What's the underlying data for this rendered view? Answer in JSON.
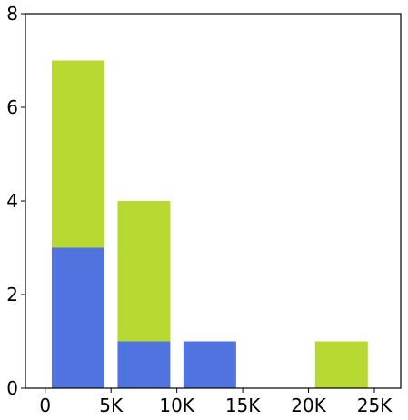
{
  "chart_data": {
    "type": "bar",
    "stacked": true,
    "title": "",
    "xlabel": "",
    "ylabel": "",
    "xlim": [
      -1500,
      27000
    ],
    "ylim": [
      0,
      8
    ],
    "grid": false,
    "legend": "none",
    "x_ticks": [
      {
        "value": 0,
        "label": "0"
      },
      {
        "value": 5000,
        "label": "5K"
      },
      {
        "value": 10000,
        "label": "10K"
      },
      {
        "value": 15000,
        "label": "15K"
      },
      {
        "value": 20000,
        "label": "20K"
      },
      {
        "value": 25000,
        "label": "25K"
      }
    ],
    "y_ticks": [
      {
        "value": 0,
        "label": "0"
      },
      {
        "value": 2,
        "label": "2"
      },
      {
        "value": 4,
        "label": "4"
      },
      {
        "value": 6,
        "label": "6"
      },
      {
        "value": 8,
        "label": "8"
      }
    ],
    "bins": [
      {
        "start": 500,
        "end": 4500
      },
      {
        "start": 5500,
        "end": 9500
      },
      {
        "start": 10500,
        "end": 14500
      },
      {
        "start": 15500,
        "end": 19500
      },
      {
        "start": 20500,
        "end": 24500
      }
    ],
    "series": [
      {
        "color": "#5173df",
        "values": [
          3,
          1,
          1,
          0,
          0
        ]
      },
      {
        "color": "#b8d832",
        "values": [
          4,
          3,
          0,
          0,
          1
        ]
      }
    ]
  }
}
